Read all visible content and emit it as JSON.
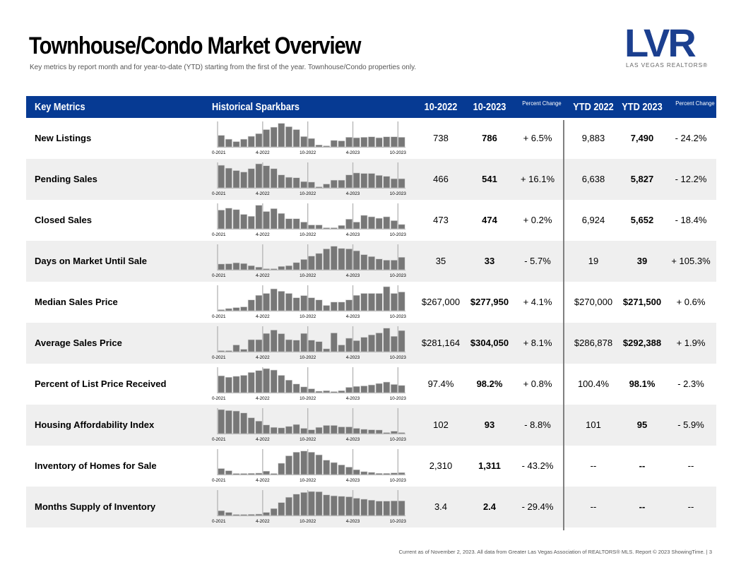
{
  "header": {
    "title": "Townhouse/Condo Market Overview",
    "subtitle": "Key metrics by report month and for year-to-date (YTD) starting from the first of the year. Townhouse/Condo properties only."
  },
  "logo": {
    "letters": "LVR",
    "name": "LAS VEGAS REALTORS®",
    "color": "#1b3f8f"
  },
  "table": {
    "header_bg": "#063a93",
    "columns": {
      "metric": "Key Metrics",
      "sparkbars": "Historical Sparkbars",
      "month_prev": "10-2022",
      "month_curr": "10-2023",
      "pct_change_1": "Percent Change",
      "ytd_prev": "YTD 2022",
      "ytd_curr": "YTD 2023",
      "pct_change_2": "Percent Change"
    },
    "spark_axis_labels": [
      "10-2021",
      "4-2022",
      "10-2022",
      "4-2023",
      "10-2023"
    ],
    "rows": [
      {
        "metric": "New Listings",
        "m_prev": "738",
        "m_curr": "786",
        "m_pct": "+ 6.5%",
        "y_prev": "9,883",
        "y_curr": "7,490",
        "y_pct": "- 24.2%",
        "spark": [
          0.48,
          0.32,
          0.22,
          0.32,
          0.44,
          0.55,
          0.72,
          0.82,
          0.98,
          0.84,
          0.72,
          0.43,
          0.35,
          0.08,
          0.03,
          0.27,
          0.25,
          0.4,
          0.38,
          0.4,
          0.42,
          0.38,
          0.42,
          0.42,
          0.4
        ]
      },
      {
        "metric": "Pending Sales",
        "m_prev": "466",
        "m_curr": "541",
        "m_pct": "+ 16.1%",
        "y_prev": "6,638",
        "y_curr": "5,827",
        "y_pct": "- 12.2%",
        "spark": [
          0.94,
          0.82,
          0.72,
          0.66,
          0.8,
          1.0,
          0.92,
          0.8,
          0.54,
          0.44,
          0.42,
          0.26,
          0.24,
          0.04,
          0.16,
          0.32,
          0.32,
          0.54,
          0.62,
          0.6,
          0.6,
          0.52,
          0.48,
          0.38,
          0.38
        ]
      },
      {
        "metric": "Closed Sales",
        "m_prev": "473",
        "m_curr": "474",
        "m_pct": "+ 0.2%",
        "y_prev": "6,924",
        "y_curr": "5,652",
        "y_pct": "- 18.4%",
        "spark": [
          0.78,
          0.86,
          0.8,
          0.6,
          0.52,
          0.98,
          0.72,
          0.84,
          0.64,
          0.42,
          0.42,
          0.28,
          0.16,
          0.16,
          0.04,
          0.04,
          0.14,
          0.4,
          0.28,
          0.56,
          0.5,
          0.44,
          0.5,
          0.34,
          0.18
        ]
      },
      {
        "metric": "Days on Market Until Sale",
        "m_prev": "35",
        "m_curr": "33",
        "m_pct": "- 5.7%",
        "y_prev": "19",
        "y_curr": "39",
        "y_pct": "+ 105.3%",
        "spark": [
          0.24,
          0.25,
          0.29,
          0.26,
          0.17,
          0.11,
          0.04,
          0.04,
          0.14,
          0.17,
          0.3,
          0.43,
          0.57,
          0.68,
          0.87,
          0.98,
          0.89,
          0.87,
          0.79,
          0.63,
          0.55,
          0.45,
          0.4,
          0.4,
          0.52
        ]
      },
      {
        "metric": "Median Sales Price",
        "m_prev": "$267,000",
        "m_curr": "$277,950",
        "m_pct": "+ 4.1%",
        "y_prev": "$270,000",
        "y_curr": "$271,500",
        "y_pct": "+ 0.6%",
        "spark": [
          0.04,
          0.09,
          0.13,
          0.16,
          0.45,
          0.64,
          0.72,
          0.91,
          0.81,
          0.72,
          0.54,
          0.63,
          0.54,
          0.45,
          0.22,
          0.36,
          0.36,
          0.45,
          0.64,
          0.72,
          0.72,
          0.72,
          1.0,
          0.72,
          0.78
        ]
      },
      {
        "metric": "Average Sales Price",
        "m_prev": "$281,164",
        "m_curr": "$304,050",
        "m_pct": "+ 8.1%",
        "y_prev": "$286,878",
        "y_curr": "$292,388",
        "y_pct": "+ 1.9%",
        "spark": [
          0.04,
          0.04,
          0.28,
          0.1,
          0.5,
          0.5,
          0.76,
          0.9,
          0.75,
          0.5,
          0.48,
          0.76,
          0.48,
          0.42,
          0.12,
          0.78,
          0.28,
          0.56,
          0.46,
          0.6,
          0.7,
          0.78,
          0.98,
          0.64,
          0.88
        ]
      },
      {
        "metric": "Percent of List Price Received",
        "m_prev": "97.4%",
        "m_curr": "98.2%",
        "m_pct": "+ 0.8%",
        "y_prev": "100.4%",
        "y_curr": "98.1%",
        "y_pct": "- 2.3%",
        "spark": [
          0.7,
          0.64,
          0.68,
          0.72,
          0.84,
          0.92,
          1.0,
          0.94,
          0.72,
          0.52,
          0.36,
          0.24,
          0.16,
          0.06,
          0.08,
          0.04,
          0.08,
          0.22,
          0.26,
          0.28,
          0.32,
          0.38,
          0.44,
          0.34,
          0.3
        ]
      },
      {
        "metric": "Housing Affordability Index",
        "m_prev": "102",
        "m_curr": "93",
        "m_pct": "- 8.8%",
        "y_prev": "101",
        "y_curr": "95",
        "y_pct": "- 5.9%",
        "spark": [
          1.0,
          0.96,
          0.94,
          0.86,
          0.66,
          0.52,
          0.36,
          0.26,
          0.24,
          0.3,
          0.38,
          0.22,
          0.16,
          0.26,
          0.34,
          0.34,
          0.28,
          0.28,
          0.22,
          0.18,
          0.16,
          0.15,
          0.04,
          0.1,
          0.03
        ]
      },
      {
        "metric": "Inventory of Homes for Sale",
        "m_prev": "2,310",
        "m_curr": "1,311",
        "m_pct": "- 43.2%",
        "y_prev": "--",
        "y_curr": "--",
        "y_pct": "--",
        "spark": [
          0.25,
          0.16,
          0.04,
          0.04,
          0.05,
          0.06,
          0.14,
          0.04,
          0.47,
          0.78,
          0.93,
          0.98,
          0.93,
          0.82,
          0.6,
          0.5,
          0.4,
          0.31,
          0.2,
          0.12,
          0.09,
          0.05,
          0.05,
          0.07,
          0.08
        ]
      },
      {
        "metric": "Months Supply of Inventory",
        "m_prev": "3.4",
        "m_curr": "2.4",
        "m_pct": "- 29.4%",
        "y_prev": "--",
        "y_curr": "--",
        "y_pct": "--",
        "spark": [
          0.2,
          0.13,
          0.04,
          0.04,
          0.05,
          0.06,
          0.13,
          0.29,
          0.54,
          0.76,
          0.89,
          0.96,
          1.0,
          0.99,
          0.86,
          0.82,
          0.8,
          0.78,
          0.72,
          0.68,
          0.64,
          0.6,
          0.6,
          0.61,
          0.61
        ]
      }
    ]
  },
  "footer": {
    "text": "Current as of November 2, 2023. All data from Greater Las Vegas Association of REALTORS® MLS. Report © 2023 ShowingTime.  |  3"
  }
}
